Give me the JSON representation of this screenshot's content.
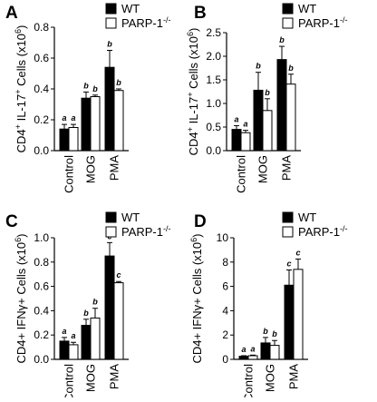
{
  "chart_data": [
    {
      "panel_label": "A",
      "type": "bar",
      "ylabel_parts": [
        [
          "CD4",
          ""
        ],
        [
          "+",
          "sup"
        ],
        [
          " IL-17",
          ""
        ],
        [
          "+",
          "sup"
        ],
        [
          " Cells (x10",
          ""
        ],
        [
          "6",
          "sup"
        ],
        [
          ")",
          ""
        ]
      ],
      "ylim": [
        0,
        0.8
      ],
      "yticks": [
        "0.0",
        "0.2",
        "0.4",
        "0.6",
        "0.8"
      ],
      "categories": [
        "Control",
        "MOG",
        "PMA"
      ],
      "series": [
        {
          "name": "WT",
          "values": [
            0.14,
            0.34,
            0.54
          ],
          "errors": [
            0.03,
            0.04,
            0.11
          ]
        },
        {
          "name": "PARP-1-/-",
          "values": [
            0.15,
            0.35,
            0.39
          ],
          "errors": [
            0.02,
            0.01,
            0.01
          ]
        }
      ],
      "annotations": [
        [
          "a",
          "a"
        ],
        [
          "b",
          "b"
        ],
        [
          "b",
          "b"
        ]
      ],
      "colors": [
        "#000000",
        "#ffffff"
      ]
    },
    {
      "panel_label": "B",
      "type": "bar",
      "ylabel_parts": [
        [
          "CD4",
          ""
        ],
        [
          "+",
          "sup"
        ],
        [
          " IL-17",
          ""
        ],
        [
          "+",
          "sup"
        ],
        [
          " Cells (x10",
          ""
        ],
        [
          "6",
          "sup"
        ],
        [
          ")",
          ""
        ]
      ],
      "ylim": [
        0,
        2.5
      ],
      "yticks": [
        "0.0",
        "0.5",
        "1.0",
        "1.5",
        "2.0",
        "2.5"
      ],
      "categories": [
        "Control",
        "MOG",
        "PMA"
      ],
      "series": [
        {
          "name": "WT",
          "values": [
            0.45,
            1.28,
            1.93
          ],
          "errors": [
            0.08,
            0.38,
            0.28
          ]
        },
        {
          "name": "PARP-1-/-",
          "values": [
            0.38,
            0.85,
            1.41
          ],
          "errors": [
            0.05,
            0.25,
            0.21
          ]
        }
      ],
      "annotations": [
        [
          "a",
          "a"
        ],
        [
          "b",
          "b"
        ],
        [
          "b",
          "b"
        ]
      ],
      "colors": [
        "#000000",
        "#ffffff"
      ]
    },
    {
      "panel_label": "C",
      "type": "bar",
      "ylabel_parts": [
        [
          "CD4+ IFN",
          ""
        ],
        [
          "γ",
          ""
        ],
        [
          "+ Cells (x10",
          ""
        ],
        [
          "6",
          "sup"
        ],
        [
          ")",
          ""
        ]
      ],
      "ylim": [
        0,
        1.0
      ],
      "yticks": [
        "0.0",
        "0.2",
        "0.4",
        "0.6",
        "0.8",
        "1.0"
      ],
      "categories": [
        "Control",
        "MOG",
        "PMA"
      ],
      "series": [
        {
          "name": "WT",
          "values": [
            0.15,
            0.28,
            0.85
          ],
          "errors": [
            0.03,
            0.05,
            0.11
          ]
        },
        {
          "name": "PARP-1-/-",
          "values": [
            0.12,
            0.34,
            0.63
          ],
          "errors": [
            0.02,
            0.08,
            0.01
          ]
        }
      ],
      "annotations": [
        [
          "a",
          "a"
        ],
        [
          "b",
          "b"
        ],
        [
          "c",
          "c"
        ]
      ],
      "colors": [
        "#000000",
        "#ffffff"
      ]
    },
    {
      "panel_label": "D",
      "type": "bar",
      "ylabel_parts": [
        [
          "CD4+ IFN",
          ""
        ],
        [
          "γ",
          ""
        ],
        [
          "+ Cells (x10",
          ""
        ],
        [
          "6",
          "sup"
        ],
        [
          ")",
          ""
        ]
      ],
      "ylim": [
        0,
        10
      ],
      "yticks": [
        "0",
        "2",
        "4",
        "6",
        "8",
        "10"
      ],
      "categories": [
        "Control",
        "MOG",
        "PMA"
      ],
      "series": [
        {
          "name": "WT",
          "values": [
            0.25,
            1.35,
            6.1
          ],
          "errors": [
            0.05,
            0.45,
            1.25
          ]
        },
        {
          "name": "PARP-1-/-",
          "values": [
            0.3,
            1.15,
            7.4
          ],
          "errors": [
            0.05,
            0.4,
            0.85
          ]
        }
      ],
      "annotations": [
        [
          "a",
          "a"
        ],
        [
          "b",
          "b"
        ],
        [
          "c",
          "c"
        ]
      ],
      "colors": [
        "#000000",
        "#ffffff"
      ]
    }
  ],
  "legend": {
    "entries": [
      {
        "base": "WT",
        "sup": ""
      },
      {
        "base": "PARP-1",
        "sup": "-/-"
      }
    ]
  }
}
